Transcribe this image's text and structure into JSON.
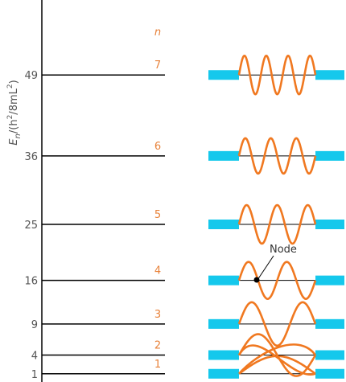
{
  "axis": {
    "label_main": "E",
    "label_sub": "n",
    "label_rest": "/(h",
    "label_sup1": "2",
    "label_mid": "/8mL",
    "label_sup2": "2",
    "label_end": ")"
  },
  "n_header": "n",
  "node_label": "Node",
  "colors": {
    "wave": "#f07820",
    "well": "#15c8ec",
    "line": "#000000",
    "axis": "#000000"
  },
  "levels": [
    {
      "n": "1",
      "energy": "1"
    },
    {
      "n": "2",
      "energy": "4"
    },
    {
      "n": "3",
      "energy": "9"
    },
    {
      "n": "4",
      "energy": "16"
    },
    {
      "n": "5",
      "energy": "25"
    },
    {
      "n": "6",
      "energy": "36"
    },
    {
      "n": "7",
      "energy": "49"
    }
  ]
}
